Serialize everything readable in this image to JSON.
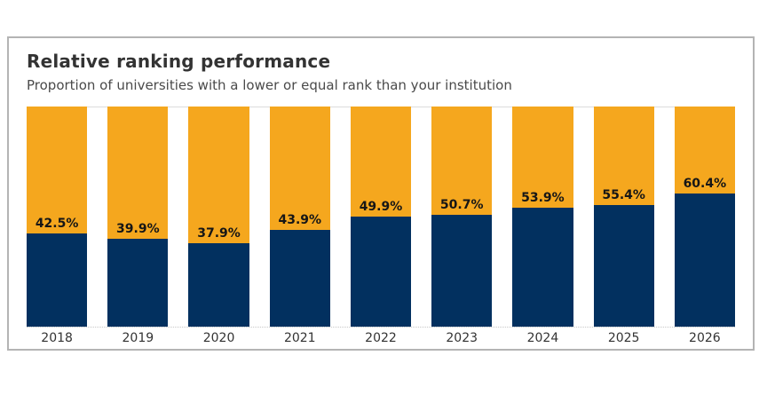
{
  "header": {
    "title": "Relative ranking performance",
    "subtitle": "Proportion of universities with a lower or equal rank than your institution"
  },
  "colors": {
    "navy": "#02305F",
    "orange": "#F5A71E",
    "frame_border": "#b4b4b4",
    "title_text": "#333333",
    "subtitle_text": "#4a4a4a",
    "bar_label_text": "#161616",
    "axis_text": "#333333",
    "gridline_top": "#dcdcdc",
    "gridline_baseline": "#c8c8c8"
  },
  "chart_data": {
    "type": "bar",
    "subtype": "stacked-100-percent-column",
    "title": "Relative ranking performance",
    "subtitle": "Proportion of universities with a lower or equal rank than your institution",
    "categories": [
      "2018",
      "2019",
      "2020",
      "2021",
      "2022",
      "2023",
      "2024",
      "2025",
      "2026"
    ],
    "series": [
      {
        "name": "lower_or_equal_rank_pct",
        "color": "#02305F",
        "values": [
          42.5,
          39.9,
          37.9,
          43.9,
          49.9,
          50.7,
          53.9,
          55.4,
          60.4
        ]
      },
      {
        "name": "remainder_pct",
        "color": "#F5A71E",
        "values": [
          57.5,
          60.1,
          62.1,
          56.1,
          50.1,
          49.3,
          46.1,
          44.6,
          39.6
        ]
      }
    ],
    "data_labels": [
      "42.5%",
      "39.9%",
      "37.9%",
      "43.9%",
      "49.9%",
      "50.7%",
      "53.9%",
      "55.4%",
      "60.4%"
    ],
    "xlabel": "",
    "ylabel": "",
    "ylim": [
      0,
      100
    ],
    "legend": "none",
    "grid": "horizontal lines at 0% and 100% only"
  }
}
